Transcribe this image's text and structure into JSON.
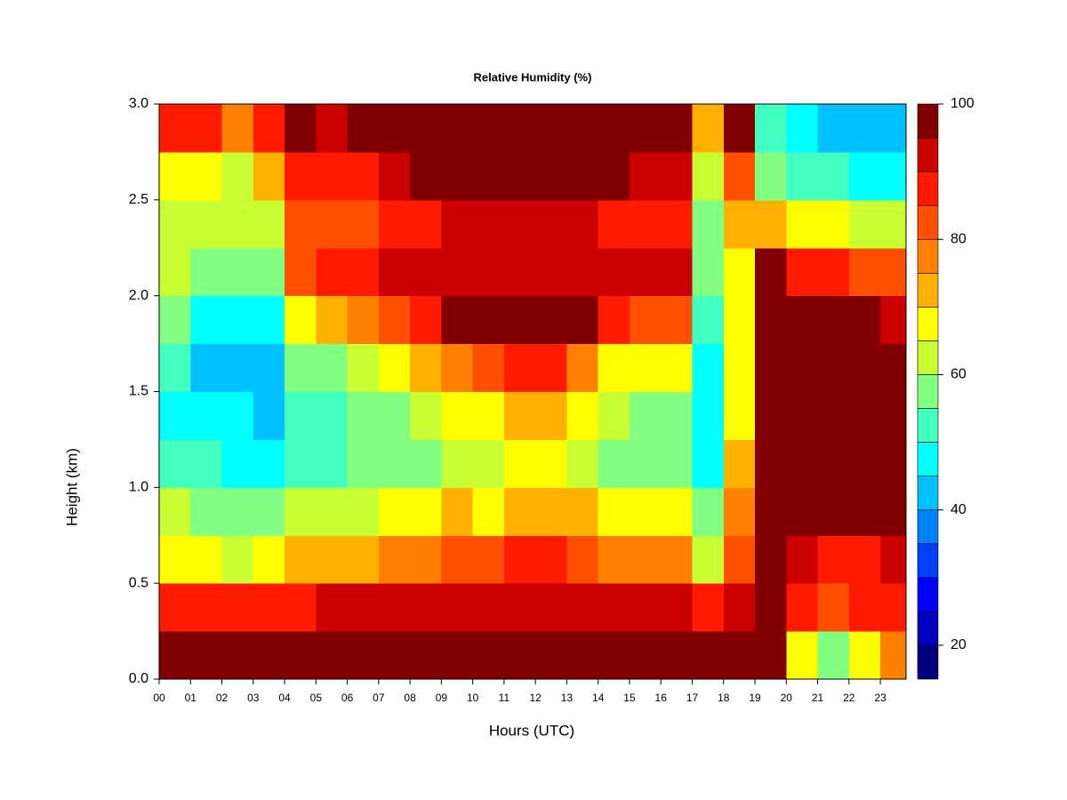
{
  "chart_data": {
    "type": "heatmap",
    "title": "Relative Humidity (%)",
    "x_label": "Hours (UTC)",
    "y_label": "Height (km)",
    "x": [
      0,
      1,
      2,
      3,
      4,
      5,
      6,
      7,
      8,
      9,
      10,
      11,
      12,
      13,
      14,
      15,
      16,
      17,
      18,
      19,
      20,
      21,
      22,
      23
    ],
    "y": [
      0,
      0.25,
      0.5,
      0.75,
      1,
      1.25,
      1.5,
      1.75,
      2,
      2.25,
      2.5,
      2.75
    ],
    "z": [
      [
        98,
        98,
        98,
        98,
        98,
        98,
        99,
        99,
        99,
        99,
        99,
        99,
        99,
        99,
        99,
        99,
        99,
        98,
        100,
        100,
        65,
        55,
        65,
        75
      ],
      [
        85,
        85,
        85,
        85,
        88,
        90,
        90,
        90,
        90,
        90,
        90,
        90,
        90,
        90,
        90,
        90,
        90,
        88,
        90,
        100,
        88,
        80,
        85,
        85
      ],
      [
        65,
        65,
        62,
        65,
        70,
        70,
        72,
        75,
        78,
        80,
        80,
        85,
        85,
        82,
        78,
        76,
        75,
        62,
        80,
        100,
        92,
        88,
        88,
        90
      ],
      [
        60,
        58,
        55,
        55,
        60,
        60,
        62,
        65,
        68,
        70,
        68,
        72,
        72,
        70,
        68,
        66,
        65,
        55,
        75,
        100,
        100,
        98,
        95,
        95
      ],
      [
        50,
        50,
        48,
        45,
        52,
        52,
        55,
        55,
        58,
        60,
        62,
        68,
        68,
        62,
        58,
        56,
        55,
        48,
        70,
        100,
        100,
        100,
        100,
        100
      ],
      [
        48,
        45,
        45,
        42,
        52,
        52,
        55,
        58,
        62,
        68,
        65,
        72,
        72,
        65,
        60,
        58,
        58,
        45,
        68,
        100,
        100,
        100,
        100,
        100
      ],
      [
        50,
        42,
        42,
        42,
        55,
        55,
        60,
        65,
        70,
        78,
        80,
        85,
        85,
        78,
        68,
        65,
        65,
        45,
        65,
        100,
        100,
        100,
        100,
        98
      ],
      [
        55,
        45,
        45,
        45,
        65,
        70,
        75,
        82,
        85,
        95,
        95,
        98,
        98,
        95,
        85,
        82,
        82,
        50,
        65,
        100,
        100,
        98,
        95,
        92
      ],
      [
        60,
        55,
        55,
        55,
        80,
        85,
        88,
        92,
        92,
        92,
        92,
        92,
        92,
        92,
        90,
        90,
        90,
        55,
        68,
        95,
        85,
        85,
        82,
        80
      ],
      [
        60,
        60,
        60,
        60,
        80,
        80,
        80,
        85,
        88,
        92,
        90,
        92,
        92,
        92,
        88,
        85,
        85,
        55,
        70,
        70,
        65,
        65,
        62,
        60
      ],
      [
        65,
        65,
        62,
        70,
        85,
        85,
        88,
        92,
        95,
        100,
        100,
        100,
        100,
        100,
        95,
        92,
        92,
        60,
        80,
        55,
        50,
        50,
        48,
        48
      ],
      [
        85,
        85,
        75,
        85,
        95,
        90,
        100,
        100,
        100,
        100,
        100,
        100,
        100,
        100,
        100,
        100,
        100,
        70,
        95,
        50,
        45,
        42,
        40,
        40
      ]
    ],
    "xlim": [
      0,
      23.82
    ],
    "ylim": [
      0,
      3
    ],
    "xticks": [
      {
        "value": 0,
        "label": "00"
      },
      {
        "value": 1,
        "label": "01"
      },
      {
        "value": 2,
        "label": "02"
      },
      {
        "value": 3,
        "label": "03"
      },
      {
        "value": 4,
        "label": "04"
      },
      {
        "value": 5,
        "label": "05"
      },
      {
        "value": 6,
        "label": "06"
      },
      {
        "value": 7,
        "label": "07"
      },
      {
        "value": 8,
        "label": "08"
      },
      {
        "value": 9,
        "label": "09"
      },
      {
        "value": 10,
        "label": "10"
      },
      {
        "value": 11,
        "label": "11"
      },
      {
        "value": 12,
        "label": "12"
      },
      {
        "value": 13,
        "label": "13"
      },
      {
        "value": 14,
        "label": "14"
      },
      {
        "value": 15,
        "label": "15"
      },
      {
        "value": 16,
        "label": "16"
      },
      {
        "value": 17,
        "label": "17"
      },
      {
        "value": 18,
        "label": "18"
      },
      {
        "value": 19,
        "label": "19"
      },
      {
        "value": 20,
        "label": "20"
      },
      {
        "value": 21,
        "label": "21"
      },
      {
        "value": 22,
        "label": "22"
      },
      {
        "value": 23,
        "label": "23"
      }
    ],
    "yticks": [
      {
        "value": 0,
        "label": "0.0"
      },
      0.5,
      {
        "value": 1,
        "label": "1.0"
      },
      1.5,
      {
        "value": 2,
        "label": "2.0"
      },
      2.5,
      {
        "value": 3,
        "label": "3.0"
      }
    ],
    "colorbar": {
      "levels": [
        15,
        20,
        25,
        30,
        35,
        40,
        45,
        50,
        55,
        60,
        65,
        70,
        75,
        80,
        85,
        90,
        95,
        100
      ],
      "colors": [
        "#000080",
        "#0000c0",
        "#0000ff",
        "#0040ff",
        "#0080ff",
        "#00c0ff",
        "#00ffff",
        "#40ffc0",
        "#80ff80",
        "#c8ff32",
        "#ffff00",
        "#ffb000",
        "#ff8000",
        "#ff5000",
        "#ff1a00",
        "#cc0000",
        "#800000"
      ],
      "ticks": [
        20,
        40,
        60,
        80,
        100
      ]
    }
  }
}
